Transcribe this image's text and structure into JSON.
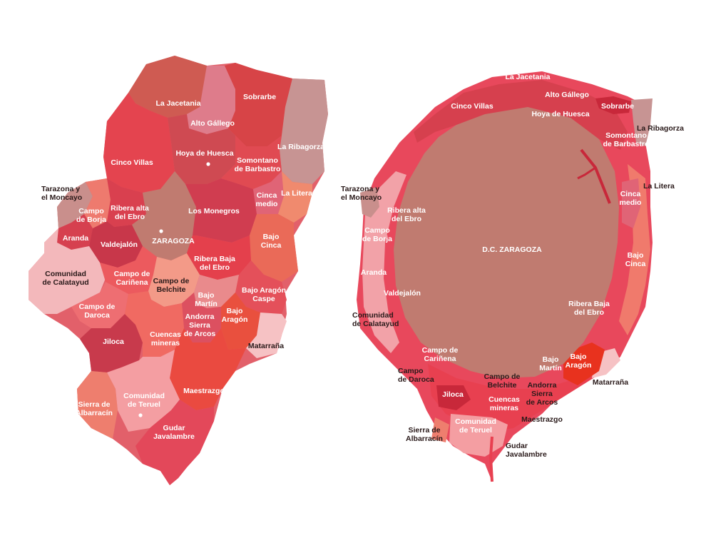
{
  "palette": {
    "deep": "#c8374a",
    "red": "#e24a52",
    "coral": "#e86a5c",
    "salmon": "#ef8a78",
    "rose": "#e07a86",
    "mauve": "#d58892",
    "dusty": "#c79493",
    "pink": "#f2aab0",
    "pale": "#f6c2c4",
    "brown": "#c07b70",
    "crimson": "#d8284a"
  },
  "left_map": {
    "capital_label": "ZARAGOZA",
    "labels": {
      "la_jacetania": "La Jacetania",
      "sobrarbe": "Sobrarbe",
      "alto_gallego": "Alto Gállego",
      "la_ribagorza": "La Ribagorza",
      "cinco_villas": "Cinco Villas",
      "hoya_de_huesca": "Hoya de Huesca",
      "somontano": "Somontano\nde Barbastro",
      "tarazona": "Tarazona y\nel Moncayo",
      "campo_de_borja": "Campo\nde Borja",
      "ribera_alta": "Ribera alta\ndel Ebro",
      "los_monegros": "Los Monegros",
      "cinca_medio": "Cinca\nmedio",
      "la_litera": "La Litera",
      "aranda": "Aranda",
      "valdejalon": "Valdejalón",
      "bajo_cinca": "Bajo\nCinca",
      "ribera_baja": "Ribera Baja\ndel Ebro",
      "comunidad_calatayud": "Comunidad\nde Calatayud",
      "campo_carinena": "Campo de\nCariñena",
      "campo_belchite": "Campo de\nBelchite",
      "bajo_aragon_caspe": "Bajo Aragón\nCaspe",
      "bajo_martin": "Bajo\nMartín",
      "campo_daroca": "Campo de\nDaroca",
      "andorra": "Andorra\nSierra\nde Arcos",
      "bajo_aragon": "Bajo\nAragón",
      "jiloca": "Jiloca",
      "cuencas_mineras": "Cuencas\nmineras",
      "matarrana": "Matarraña",
      "maestrazgo": "Maestrazgo",
      "sierra_albarracin": "Sierra de\nAlbarracín",
      "comunidad_teruel": "Comunidad\nde Teruel",
      "gudar": "Gudar\nJavalambre"
    }
  },
  "right_map": {
    "labels": {
      "la_jacetania": "La Jacetania",
      "alto_gallego": "Alto Gállego",
      "sobrarbe": "Sobrarbe",
      "la_ribagorza": "La Ribagorza",
      "cinco_villas": "Cinco Villas",
      "hoya_de_huesca": "Hoya de Huesca",
      "somontano": "Somontano\nde Barbastro",
      "tarazona": "Tarazona y\nel Moncayo",
      "la_litera": "La Litera",
      "ribera_alta": "Ribera alta\ndel Ebro",
      "cinca_medio": "Cinca\nmedio",
      "campo_de_borja": "Campo\nde Borja",
      "dc_zaragoza": "D.C. ZARAGOZA",
      "bajo_cinca": "Bajo\nCinca",
      "aranda": "Aranda",
      "valdejalon": "Valdejalón",
      "ribera_baja": "Ribera Baja\ndel Ebro",
      "comunidad_calatayud": "Comunidad\nde Calatayud",
      "campo_carinena": "Campo de\nCariñena",
      "bajo_martin": "Bajo\nMartín",
      "bajo_aragon": "Bajo\nAragón",
      "campo_daroca": "Campo\nde Daroca",
      "matarrana": "Matarraña",
      "campo_belchite": "Campo de\nBelchite",
      "andorra": "Andorra\nSierra\nde Arcos",
      "jiloca": "Jiloca",
      "cuencas_mineras": "Cuencas\nmineras",
      "maestrazgo": "Maestrazgo",
      "sierra_albarracin": "Sierra de\nAlbarracín",
      "comunidad_teruel": "Comunidad\nde Teruel",
      "gudar": "Gudar\nJavalambre"
    }
  }
}
